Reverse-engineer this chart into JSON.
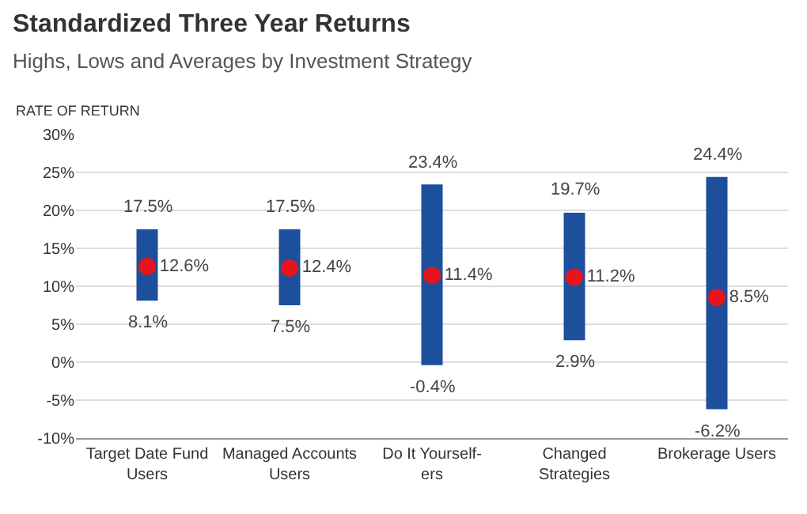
{
  "chart_data": {
    "type": "bar",
    "title": "Standardized Three Year Returns",
    "subtitle": "Highs, Lows and Averages by Investment Strategy",
    "ylabel": "RATE OF RETURN",
    "categories": [
      "Target Date Fund Users",
      "Managed Accounts Users",
      "Do It Yourself-ers",
      "Changed Strategies",
      "Brokerage Users"
    ],
    "series": [
      {
        "color": "#1c4f9c",
        "base": [
          8.1,
          7.5,
          -0.4,
          2.9,
          -6.2
        ],
        "values": [
          9.4,
          10.0,
          23.8,
          16.8,
          30.6
        ]
      },
      {
        "type": "scatter",
        "color": "#e8141c",
        "marker": "circle",
        "values": [
          12.6,
          12.4,
          11.4,
          11.2,
          8.5
        ],
        "value_labels": [
          "12.6%",
          "12.4%",
          "11.4%",
          "11.2%",
          "8.5%"
        ]
      }
    ],
    "annotations": [
      {
        "text": "17.5%",
        "x": "Target Date Fund Users",
        "y": 17.5
      },
      {
        "text": "8.1%",
        "x": "Target Date Fund Users",
        "y": 8.1
      },
      {
        "text": "17.5%",
        "x": "Managed Accounts Users",
        "y": 17.5
      },
      {
        "text": "7.5%",
        "x": "Managed Accounts Users",
        "y": 7.5
      },
      {
        "text": "23.4%",
        "x": "Do It Yourself-ers",
        "y": 23.4
      },
      {
        "text": "-0.4%",
        "x": "Do It Yourself-ers",
        "y": -0.4
      },
      {
        "text": "19.7%",
        "x": "Changed Strategies",
        "y": 19.7
      },
      {
        "text": "2.9%",
        "x": "Changed Strategies",
        "y": 2.9
      },
      {
        "text": "24.4%",
        "x": "Brokerage Users",
        "y": 24.4
      },
      {
        "text": "-6.2%",
        "x": "Brokerage Users",
        "y": -6.2
      }
    ],
    "ylim": [
      -10,
      30
    ],
    "yticks": [
      {
        "value": -10,
        "label": "-10%"
      },
      {
        "value": -5,
        "label": "-5%"
      },
      {
        "value": 0,
        "label": "0%"
      },
      {
        "value": 5,
        "label": "5%"
      },
      {
        "value": 10,
        "label": "10%"
      },
      {
        "value": 15,
        "label": "15%"
      },
      {
        "value": 20,
        "label": "20%"
      },
      {
        "value": 25,
        "label": "25%"
      },
      {
        "value": 30,
        "label": "30%"
      }
    ],
    "grid": "y"
  }
}
